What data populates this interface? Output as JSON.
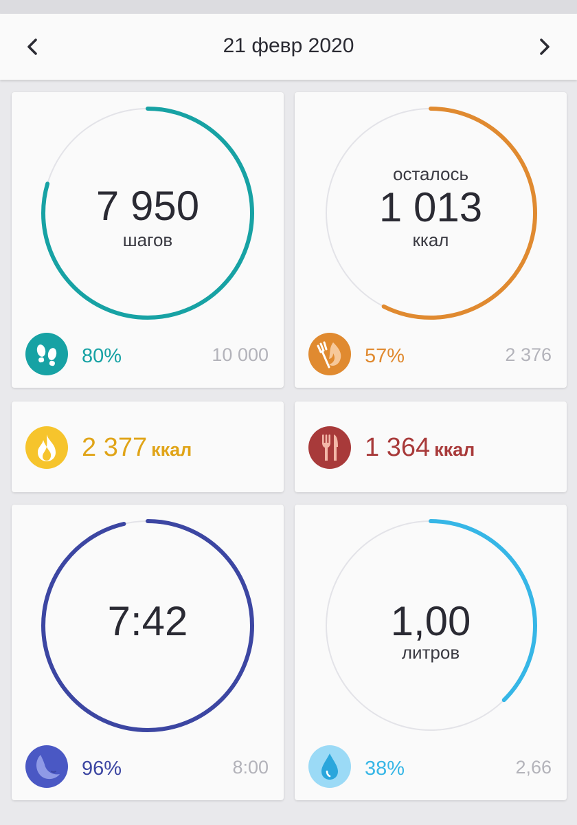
{
  "header": {
    "date": "21 февр 2020"
  },
  "steps": {
    "value": "7 950",
    "unit": "шагов",
    "percent": "80%",
    "goal": "10 000",
    "progress": 0.795,
    "color": "#17a2a4",
    "icon": "footprints-icon"
  },
  "calories_left": {
    "prefix": "осталось",
    "value": "1 013",
    "unit": "ккал",
    "percent": "57%",
    "goal": "2 376",
    "progress": 0.574,
    "color": "#e08a30",
    "icon": "fork-flame-icon"
  },
  "burned": {
    "value": "2 377",
    "unit": "ккал",
    "color": "#e0a418",
    "icon": "flame-icon"
  },
  "eaten": {
    "value": "1 364",
    "unit": "ккал",
    "color": "#a83a3a",
    "icon": "fork-knife-icon"
  },
  "sleep": {
    "value": "7:42",
    "percent": "96%",
    "goal": "8:00",
    "progress": 0.963,
    "color": "#3c46a2",
    "icon": "moon-icon"
  },
  "water": {
    "value": "1,00",
    "unit": "литров",
    "percent": "38%",
    "goal": "2,66",
    "progress": 0.376,
    "color": "#36b6e6",
    "icon": "water-drop-icon"
  }
}
